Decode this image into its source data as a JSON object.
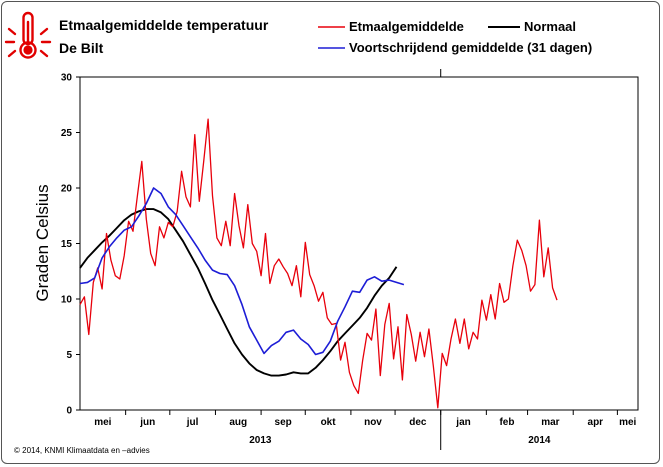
{
  "title": "Etmaalgemiddelde temperatuur",
  "subtitle": "De Bilt",
  "footer": "© 2014, KNMI Klimaatdata en –advies",
  "icon": "thermometer-icon",
  "colors": {
    "daily": "#e8000b",
    "normal": "#000000",
    "running": "#1d1dd6",
    "icon": "#e10000"
  },
  "chart_data": {
    "type": "line",
    "title": "Etmaalgemiddelde temperatuur",
    "subtitle": "De Bilt",
    "ylabel": "Graden Celsius",
    "xlabel": "",
    "ylim": [
      0,
      30
    ],
    "yticks": [
      0,
      5,
      10,
      15,
      20,
      25,
      30
    ],
    "grid": false,
    "legend_position": "top",
    "months": [
      "mei",
      "jun",
      "jul",
      "aug",
      "sep",
      "okt",
      "nov",
      "dec",
      "jan",
      "feb",
      "mar",
      "apr",
      "mei"
    ],
    "years": [
      "2013",
      "2014"
    ],
    "x_unit": "day",
    "x_range": [
      "2013-05-01",
      "2014-05-15"
    ],
    "series": [
      {
        "name": "Etmaalgemiddelde",
        "x_start": "2013-05-01",
        "x_step_days": 3,
        "values": [
          9.5,
          10.2,
          6.8,
          11.5,
          12.8,
          10.9,
          15.9,
          13.5,
          12.1,
          11.8,
          13.9,
          17.0,
          16.1,
          19.3,
          22.4,
          17.2,
          14.1,
          13.0,
          16.5,
          15.5,
          16.9,
          16.5,
          17.9,
          21.5,
          19.2,
          18.3,
          24.8,
          18.8,
          22.4,
          26.2,
          19.3,
          15.5,
          14.8,
          17.0,
          14.8,
          19.5,
          16.6,
          14.6,
          18.5,
          15.0,
          14.3,
          12.1,
          15.9,
          11.4,
          13.0,
          13.6,
          12.9,
          12.3,
          11.2,
          13.0,
          10.2,
          15.1,
          12.2,
          11.2,
          9.8,
          10.6,
          8.3,
          7.7,
          7.8,
          4.5,
          6.1,
          3.4,
          2.2,
          1.5,
          4.5,
          6.9,
          6.3,
          9.1,
          3.1,
          7.7,
          9.6,
          4.6,
          7.5,
          2.7,
          8.6,
          6.8,
          4.4,
          7.0,
          4.8,
          7.3,
          3.9,
          0.2,
          5.1,
          4.0,
          6.4,
          8.2,
          6.0,
          8.2,
          5.5,
          7.0,
          6.4,
          9.9,
          8.1,
          10.4,
          8.2,
          11.4,
          9.7,
          10.0,
          13.0,
          15.3,
          14.4,
          13.0,
          10.7,
          11.3,
          17.1,
          12.0,
          14.6,
          11.0,
          9.9
        ]
      },
      {
        "name": "Voortschrijdend gemiddelde (31 dagen)",
        "x_start": "2013-05-01",
        "x_step_days": 5,
        "values": [
          11.4,
          11.5,
          11.9,
          13.7,
          14.7,
          15.5,
          16.2,
          16.5,
          17.5,
          18.6,
          20.0,
          19.5,
          18.3,
          17.6,
          16.6,
          15.6,
          14.6,
          13.5,
          12.6,
          12.3,
          12.2,
          11.2,
          9.5,
          7.5,
          6.3,
          5.1,
          5.8,
          6.2,
          7.0,
          7.2,
          6.4,
          5.9,
          5.0,
          5.2,
          6.2,
          8.0,
          9.3,
          10.7,
          10.6,
          11.7,
          12.0,
          11.6,
          11.7,
          11.5,
          11.3
        ]
      },
      {
        "name": "Normaal",
        "x_start": "2013-05-01",
        "x_step_days": 5,
        "values": [
          12.8,
          13.7,
          14.4,
          15.1,
          15.7,
          16.4,
          17.1,
          17.6,
          17.9,
          18.1,
          18.1,
          17.8,
          17.2,
          16.2,
          15.2,
          14.0,
          12.8,
          11.4,
          9.9,
          8.6,
          7.3,
          6.0,
          5.0,
          4.2,
          3.6,
          3.3,
          3.1,
          3.1,
          3.2,
          3.4,
          3.3,
          3.3,
          3.8,
          4.5,
          5.3,
          6.2,
          6.9,
          7.6,
          8.3,
          9.2,
          10.3,
          11.2,
          11.9,
          12.9
        ]
      }
    ]
  }
}
